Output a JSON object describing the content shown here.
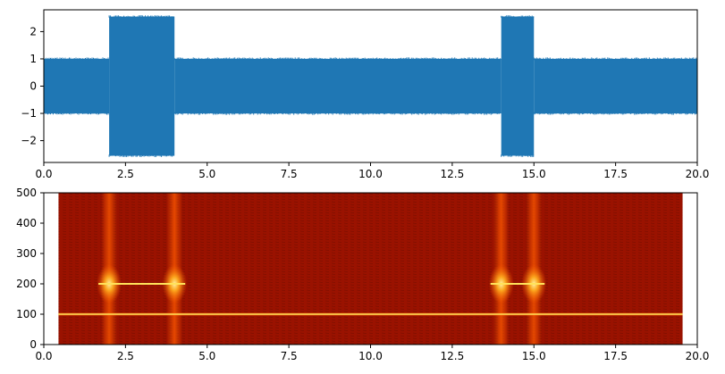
{
  "colors": {
    "signal_line": "#1f77b4",
    "spec_background": "#9a1200",
    "spec_hot": "#ffe25a",
    "spec_glow": "#ff6a00",
    "axis": "#000000"
  },
  "chart_data": [
    {
      "type": "line",
      "title": "",
      "xlabel": "",
      "ylabel": "",
      "xlim": [
        0,
        20
      ],
      "ylim": [
        -2.8,
        2.8
      ],
      "x_ticks": [
        0,
        2.5,
        5,
        7.5,
        10,
        12.5,
        15,
        17.5,
        20
      ],
      "x_tick_labels": [
        "0.0",
        "2.5",
        "5.0",
        "7.5",
        "10.0",
        "12.5",
        "15.0",
        "17.5",
        "20.0"
      ],
      "y_ticks": [
        -2,
        -1,
        0,
        1,
        2
      ],
      "y_tick_labels": [
        "−2",
        "−1",
        "0",
        "1",
        "2"
      ],
      "grid": false,
      "series": [
        {
          "envelope": [
            {
              "t_start": 0,
              "t_end": 2,
              "amplitude": 1.0
            },
            {
              "t_start": 2,
              "t_end": 4,
              "amplitude": 2.55
            },
            {
              "t_start": 4,
              "t_end": 14,
              "amplitude": 1.0
            },
            {
              "t_start": 14,
              "t_end": 15,
              "amplitude": 2.55
            },
            {
              "t_start": 15,
              "t_end": 20,
              "amplitude": 1.0
            }
          ]
        }
      ]
    },
    {
      "type": "heatmap",
      "title": "",
      "xlabel": "",
      "ylabel": "",
      "xlim": [
        0,
        20
      ],
      "ylim": [
        0,
        500
      ],
      "data_extent_x": [
        0.45,
        19.55
      ],
      "x_ticks": [
        0,
        2.5,
        5,
        7.5,
        10,
        12.5,
        15,
        17.5,
        20
      ],
      "x_tick_labels": [
        "0.0",
        "2.5",
        "5.0",
        "7.5",
        "10.0",
        "12.5",
        "15.0",
        "17.5",
        "20.0"
      ],
      "y_ticks": [
        0,
        100,
        200,
        300,
        400,
        500
      ],
      "y_tick_labels": [
        "0",
        "100",
        "200",
        "300",
        "400",
        "500"
      ],
      "colormap": "hot",
      "persistent_lines": [
        {
          "frequency": 100,
          "t_start": 0.45,
          "t_end": 19.55
        }
      ],
      "burst_lines": [
        {
          "frequency": 200,
          "t_start": 2,
          "t_end": 4
        },
        {
          "frequency": 200,
          "t_start": 14,
          "t_end": 15
        }
      ],
      "transients": [
        2,
        4,
        14,
        15
      ]
    }
  ]
}
